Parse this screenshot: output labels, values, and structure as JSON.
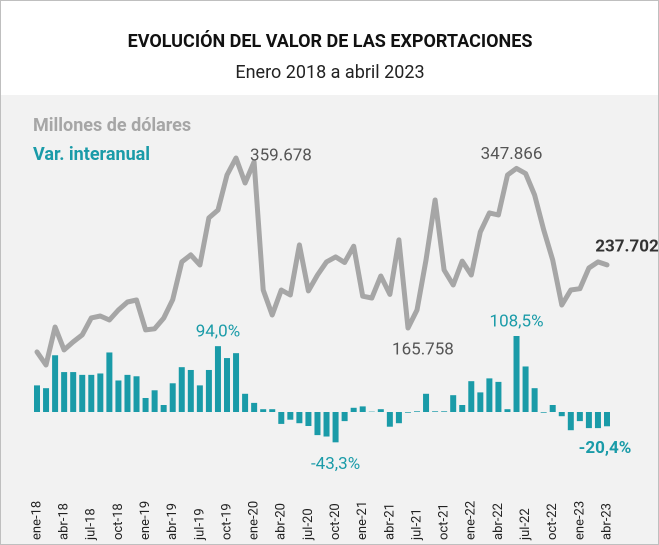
{
  "chart_data": {
    "type": "line_bar",
    "title": "EVOLUCIÓN DEL VALOR DE LAS EXPORTACIONES",
    "subtitle": "Enero 2018 a abril 2023",
    "categories": [
      "ene-18",
      null,
      null,
      "abr-18",
      null,
      null,
      "jul-18",
      null,
      null,
      "oct-18",
      null,
      null,
      "ene-19",
      null,
      null,
      "abr-19",
      null,
      null,
      "jul-19",
      null,
      null,
      "oct-19",
      null,
      null,
      "ene-20",
      null,
      null,
      "abr-20",
      null,
      null,
      "jul-20",
      null,
      null,
      "oct-20",
      null,
      null,
      "ene-21",
      null,
      null,
      "abr-21",
      null,
      null,
      "jul-21",
      null,
      null,
      "oct-21",
      null,
      null,
      "ene-22",
      null,
      null,
      "abr-22",
      null,
      null,
      "jul-22",
      null,
      null,
      "oct-22",
      null,
      null,
      "ene-23",
      null,
      null,
      "abr-23"
    ],
    "series": [
      {
        "name": "Millones de dólares",
        "color": "#a6a6a6",
        "kind": "line",
        "values": [
          138400,
          123500,
          166900,
          140700,
          149800,
          157800,
          177200,
          179400,
          174900,
          186300,
          195400,
          197700,
          163500,
          164800,
          177000,
          198000,
          241100,
          249100,
          237600,
          291300,
          300400,
          340300,
          359678,
          331200,
          355200,
          209100,
          180600,
          209100,
          203400,
          260500,
          208000,
          226200,
          241100,
          246800,
          240500,
          259000,
          202000,
          200000,
          225000,
          204000,
          266200,
          165758,
          186300,
          243300,
          311800,
          231900,
          214800,
          242000,
          226200,
          275300,
          297000,
          294700,
          340300,
          347866,
          342000,
          317500,
          277600,
          243300,
          192000,
          209100,
          210500,
          234200,
          241100,
          237702
        ],
        "value_labels": [
          null,
          null,
          null,
          null,
          null,
          null,
          null,
          null,
          null,
          null,
          null,
          null,
          null,
          null,
          null,
          null,
          null,
          null,
          null,
          null,
          null,
          null,
          "359.678",
          null,
          null,
          null,
          null,
          null,
          null,
          null,
          null,
          null,
          null,
          null,
          null,
          null,
          null,
          null,
          null,
          null,
          null,
          "165.758",
          null,
          null,
          null,
          null,
          null,
          null,
          null,
          null,
          null,
          null,
          null,
          "347.866",
          null,
          null,
          null,
          null,
          null,
          null,
          null,
          null,
          null,
          "237.702"
        ]
      },
      {
        "name": "Var. interanual",
        "color": "#1a9ba8",
        "kind": "bar",
        "values": [
          38,
          34,
          81,
          57,
          57,
          53,
          53,
          55,
          85,
          45,
          53,
          51,
          20,
          31,
          10,
          41,
          64,
          60,
          38,
          60,
          94.0,
          77,
          84,
          26,
          13,
          4,
          4,
          -17,
          -11,
          -16,
          -20,
          -33,
          -35,
          -43.3,
          -13,
          6,
          8,
          0.5,
          4,
          -21,
          -16,
          -1,
          1,
          26,
          1,
          1,
          24,
          10,
          44,
          28,
          48,
          43,
          4,
          108.5,
          65,
          34,
          -1,
          10,
          -6,
          -26,
          -13,
          -23,
          -23,
          -20.4
        ],
        "value_labels": [
          null,
          null,
          null,
          null,
          null,
          null,
          null,
          null,
          null,
          null,
          null,
          null,
          null,
          null,
          null,
          null,
          null,
          null,
          null,
          null,
          "94,0%",
          null,
          null,
          null,
          null,
          null,
          null,
          null,
          null,
          null,
          null,
          null,
          null,
          "-43,3%",
          null,
          null,
          null,
          null,
          null,
          null,
          null,
          null,
          null,
          null,
          null,
          null,
          null,
          null,
          null,
          null,
          null,
          null,
          null,
          "108,5%",
          null,
          null,
          null,
          null,
          null,
          null,
          null,
          null,
          null,
          "-20,4%"
        ]
      }
    ]
  }
}
